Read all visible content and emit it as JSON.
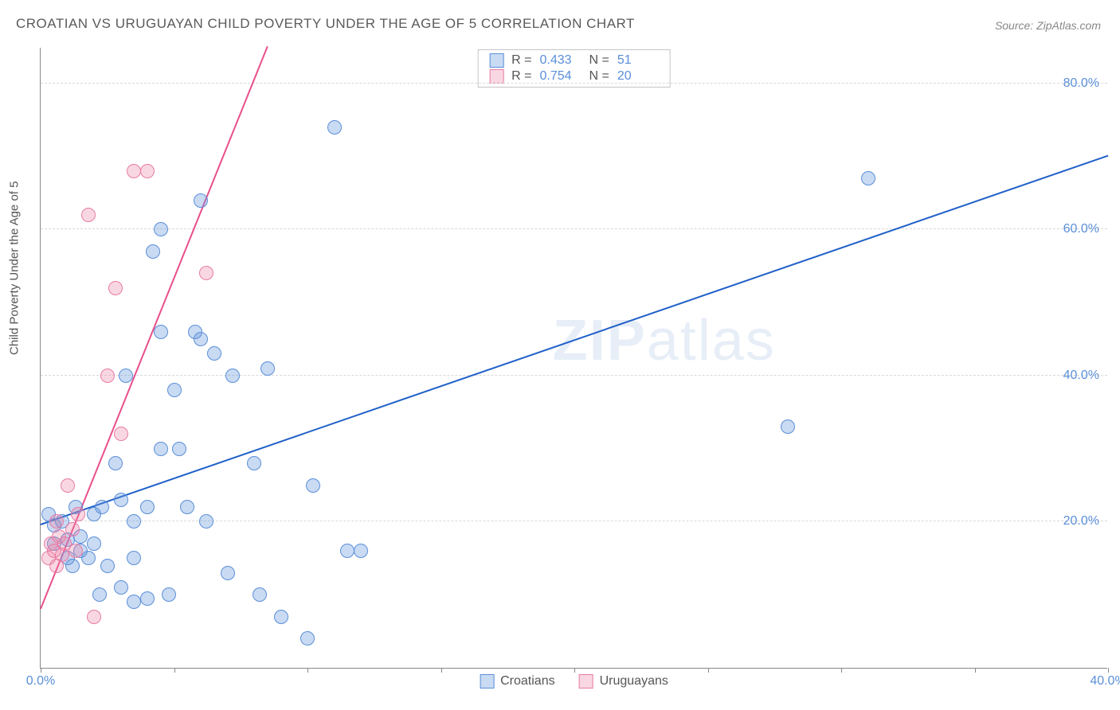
{
  "title": "CROATIAN VS URUGUAYAN CHILD POVERTY UNDER THE AGE OF 5 CORRELATION CHART",
  "source": "Source: ZipAtlas.com",
  "watermark_bold": "ZIP",
  "watermark_light": "atlas",
  "chart": {
    "type": "scatter",
    "y_axis_label": "Child Poverty Under the Age of 5",
    "xlim": [
      0,
      40
    ],
    "ylim": [
      0,
      85
    ],
    "x_ticks": [
      0,
      5,
      10,
      15,
      20,
      25,
      30,
      35,
      40
    ],
    "x_tick_labels": {
      "0": "0.0%",
      "40": "40.0%"
    },
    "y_gridlines": [
      20,
      40,
      60,
      80
    ],
    "y_tick_labels": {
      "20": "20.0%",
      "40": "40.0%",
      "60": "60.0%",
      "80": "80.0%"
    },
    "grid_color": "#d8d8d8",
    "axis_label_color": "#5a8fd8",
    "background_color": "#ffffff"
  },
  "series": [
    {
      "name": "Croatians",
      "marker_color_fill": "rgba(100,150,220,0.35)",
      "marker_color_stroke": "#5a8fd8",
      "marker_radius": 9,
      "trend_color": "#2060c8",
      "trend_line": {
        "x1": 0,
        "y1": 19.5,
        "x2": 40,
        "y2": 70
      },
      "R": "0.433",
      "N": "51",
      "points": [
        [
          0.3,
          21
        ],
        [
          0.5,
          19.5
        ],
        [
          0.5,
          17
        ],
        [
          0.8,
          20
        ],
        [
          1.0,
          15
        ],
        [
          1.0,
          17.5
        ],
        [
          1.2,
          14
        ],
        [
          1.3,
          22
        ],
        [
          1.5,
          18
        ],
        [
          1.5,
          16
        ],
        [
          1.8,
          15
        ],
        [
          2.0,
          21
        ],
        [
          2.0,
          17
        ],
        [
          2.2,
          10
        ],
        [
          2.3,
          22
        ],
        [
          2.5,
          14
        ],
        [
          2.8,
          28
        ],
        [
          3.0,
          23
        ],
        [
          3.0,
          11
        ],
        [
          3.2,
          40
        ],
        [
          3.5,
          15
        ],
        [
          3.5,
          20
        ],
        [
          3.5,
          9
        ],
        [
          4.0,
          9.5
        ],
        [
          4.0,
          22
        ],
        [
          4.2,
          57
        ],
        [
          4.5,
          30
        ],
        [
          4.5,
          46
        ],
        [
          4.5,
          60
        ],
        [
          4.8,
          10
        ],
        [
          5.0,
          38
        ],
        [
          5.2,
          30
        ],
        [
          5.5,
          22
        ],
        [
          5.8,
          46
        ],
        [
          6.0,
          45
        ],
        [
          6.0,
          64
        ],
        [
          6.2,
          20
        ],
        [
          6.5,
          43
        ],
        [
          7.0,
          13
        ],
        [
          7.2,
          40
        ],
        [
          8.0,
          28
        ],
        [
          8.2,
          10
        ],
        [
          8.5,
          41
        ],
        [
          9.0,
          7
        ],
        [
          10.0,
          4
        ],
        [
          10.2,
          25
        ],
        [
          11.0,
          74
        ],
        [
          11.5,
          16
        ],
        [
          12.0,
          16
        ],
        [
          28.0,
          33
        ],
        [
          31.0,
          67
        ]
      ]
    },
    {
      "name": "Uruguayans",
      "marker_color_fill": "rgba(235,130,165,0.32)",
      "marker_color_stroke": "#e87ba5",
      "marker_radius": 9,
      "trend_color": "#e94f8b",
      "trend_line": {
        "x1": 0,
        "y1": 8,
        "x2": 8.5,
        "y2": 85
      },
      "R": "0.754",
      "N": "20",
      "points": [
        [
          0.3,
          15
        ],
        [
          0.4,
          17
        ],
        [
          0.5,
          16
        ],
        [
          0.6,
          14
        ],
        [
          0.6,
          20
        ],
        [
          0.7,
          18
        ],
        [
          0.8,
          15.5
        ],
        [
          0.9,
          17
        ],
        [
          1.0,
          25
        ],
        [
          1.2,
          19
        ],
        [
          1.3,
          16
        ],
        [
          1.4,
          21
        ],
        [
          1.8,
          62
        ],
        [
          2.0,
          7
        ],
        [
          2.5,
          40
        ],
        [
          2.8,
          52
        ],
        [
          3.0,
          32
        ],
        [
          3.5,
          68
        ],
        [
          4.0,
          68
        ],
        [
          6.2,
          54
        ]
      ]
    }
  ],
  "legend_top": {
    "r_label": "R =",
    "n_label": "N ="
  },
  "legend_bottom": [
    "Croatians",
    "Uruguayans"
  ]
}
